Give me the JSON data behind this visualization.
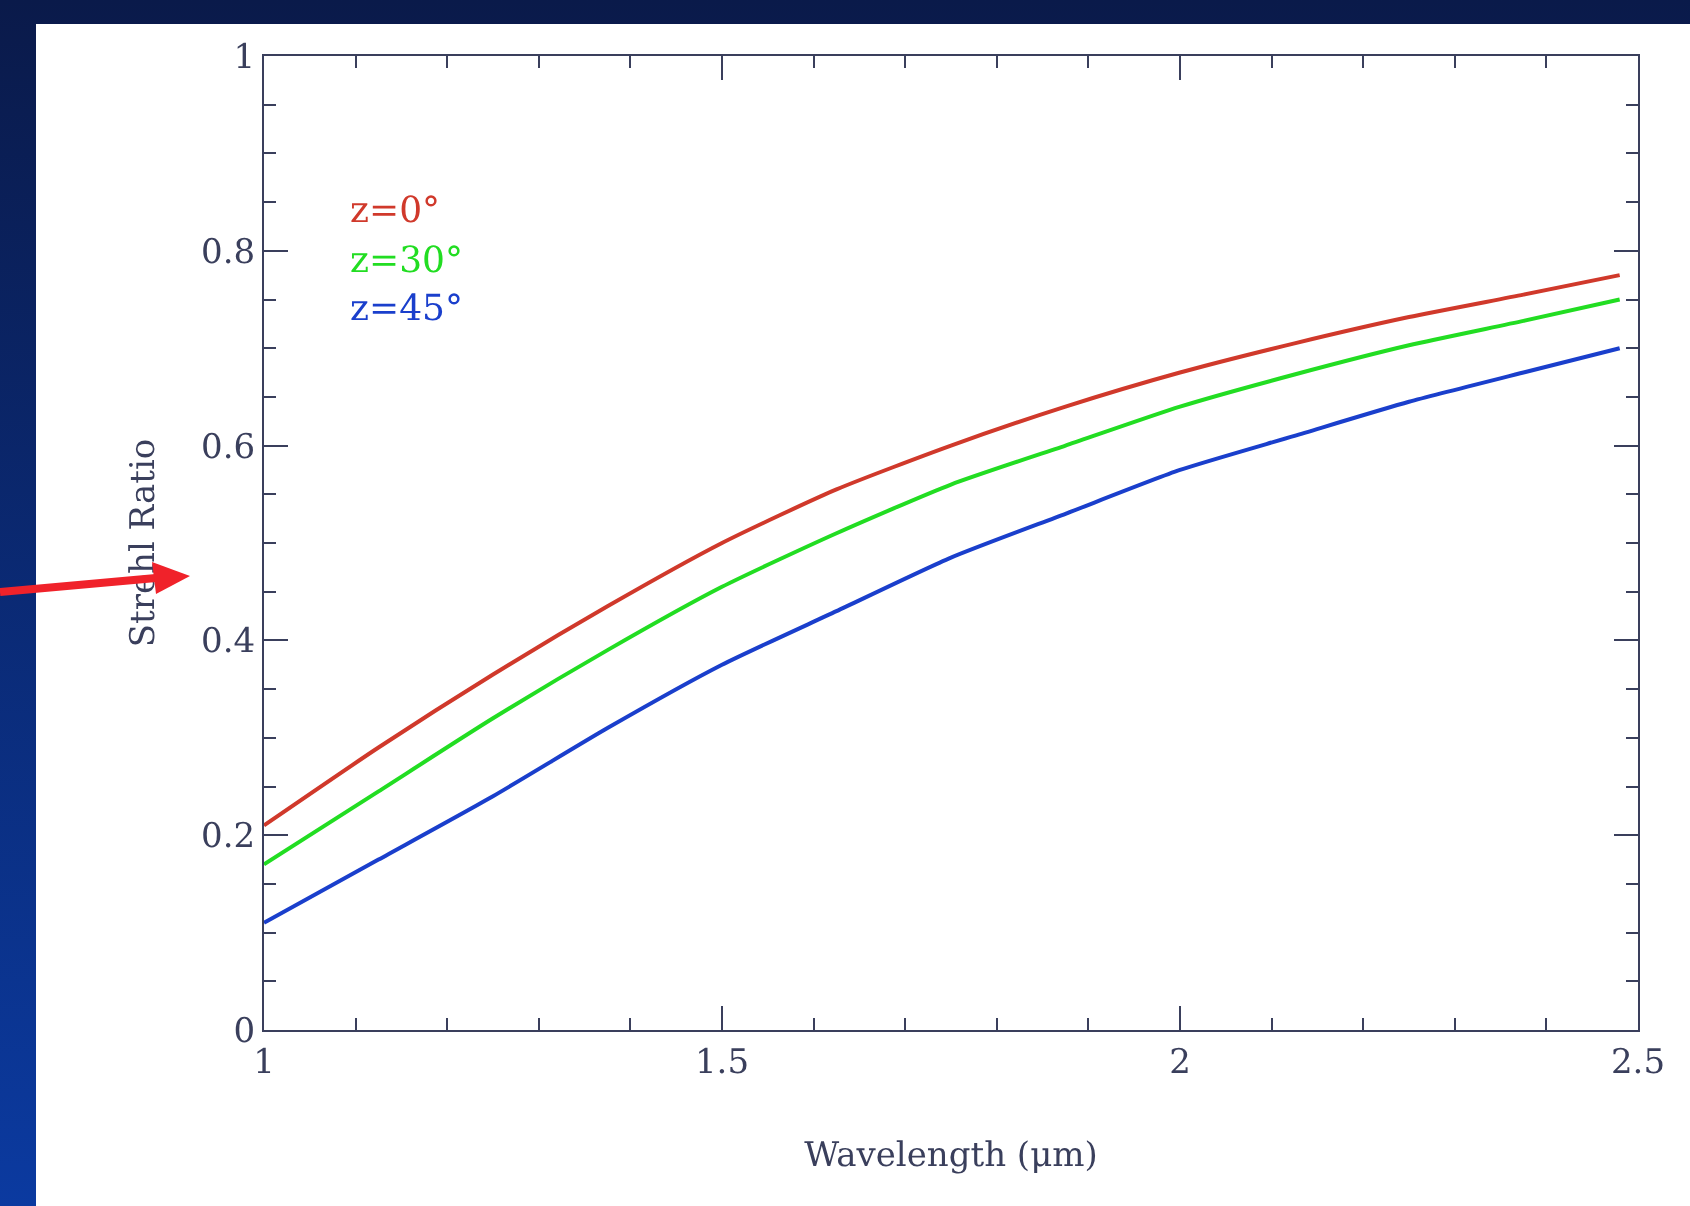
{
  "chart_data": {
    "type": "line",
    "xlabel": "Wavelength (μm)",
    "ylabel": "Strehl Ratio",
    "xlim": [
      1,
      2.5
    ],
    "xticks": [
      1,
      1.5,
      2,
      2.5
    ],
    "ylim": [
      0,
      1
    ],
    "yticks": [
      0,
      0.2,
      0.4,
      0.6,
      0.8,
      1
    ],
    "grid": false,
    "legend": "top left",
    "marker": "none",
    "line_style": "solid",
    "series": [
      {
        "name": "z=0°",
        "color": "#d0392b",
        "x": [
          1,
          1.125,
          1.25,
          1.375,
          1.5,
          1.625,
          1.75,
          1.875,
          2,
          2.125,
          2.25,
          2.375,
          2.48
        ],
        "values": [
          0.21,
          0.29,
          0.365,
          0.435,
          0.5,
          0.555,
          0.6,
          0.64,
          0.675,
          0.705,
          0.732,
          0.755,
          0.775
        ]
      },
      {
        "name": "z=30°",
        "color": "#22dd22",
        "x": [
          1,
          1.125,
          1.25,
          1.375,
          1.5,
          1.625,
          1.75,
          1.875,
          2,
          2.125,
          2.25,
          2.375,
          2.48
        ],
        "values": [
          0.17,
          0.245,
          0.32,
          0.39,
          0.455,
          0.51,
          0.56,
          0.6,
          0.64,
          0.673,
          0.703,
          0.728,
          0.75
        ]
      },
      {
        "name": "z=45°",
        "color": "#1a3fcc",
        "x": [
          1,
          1.125,
          1.25,
          1.375,
          1.5,
          1.625,
          1.75,
          1.875,
          2,
          2.125,
          2.25,
          2.375,
          2.48
        ],
        "values": [
          0.11,
          0.175,
          0.24,
          0.31,
          0.375,
          0.43,
          0.485,
          0.53,
          0.575,
          0.61,
          0.645,
          0.675,
          0.7
        ]
      }
    ]
  }
}
